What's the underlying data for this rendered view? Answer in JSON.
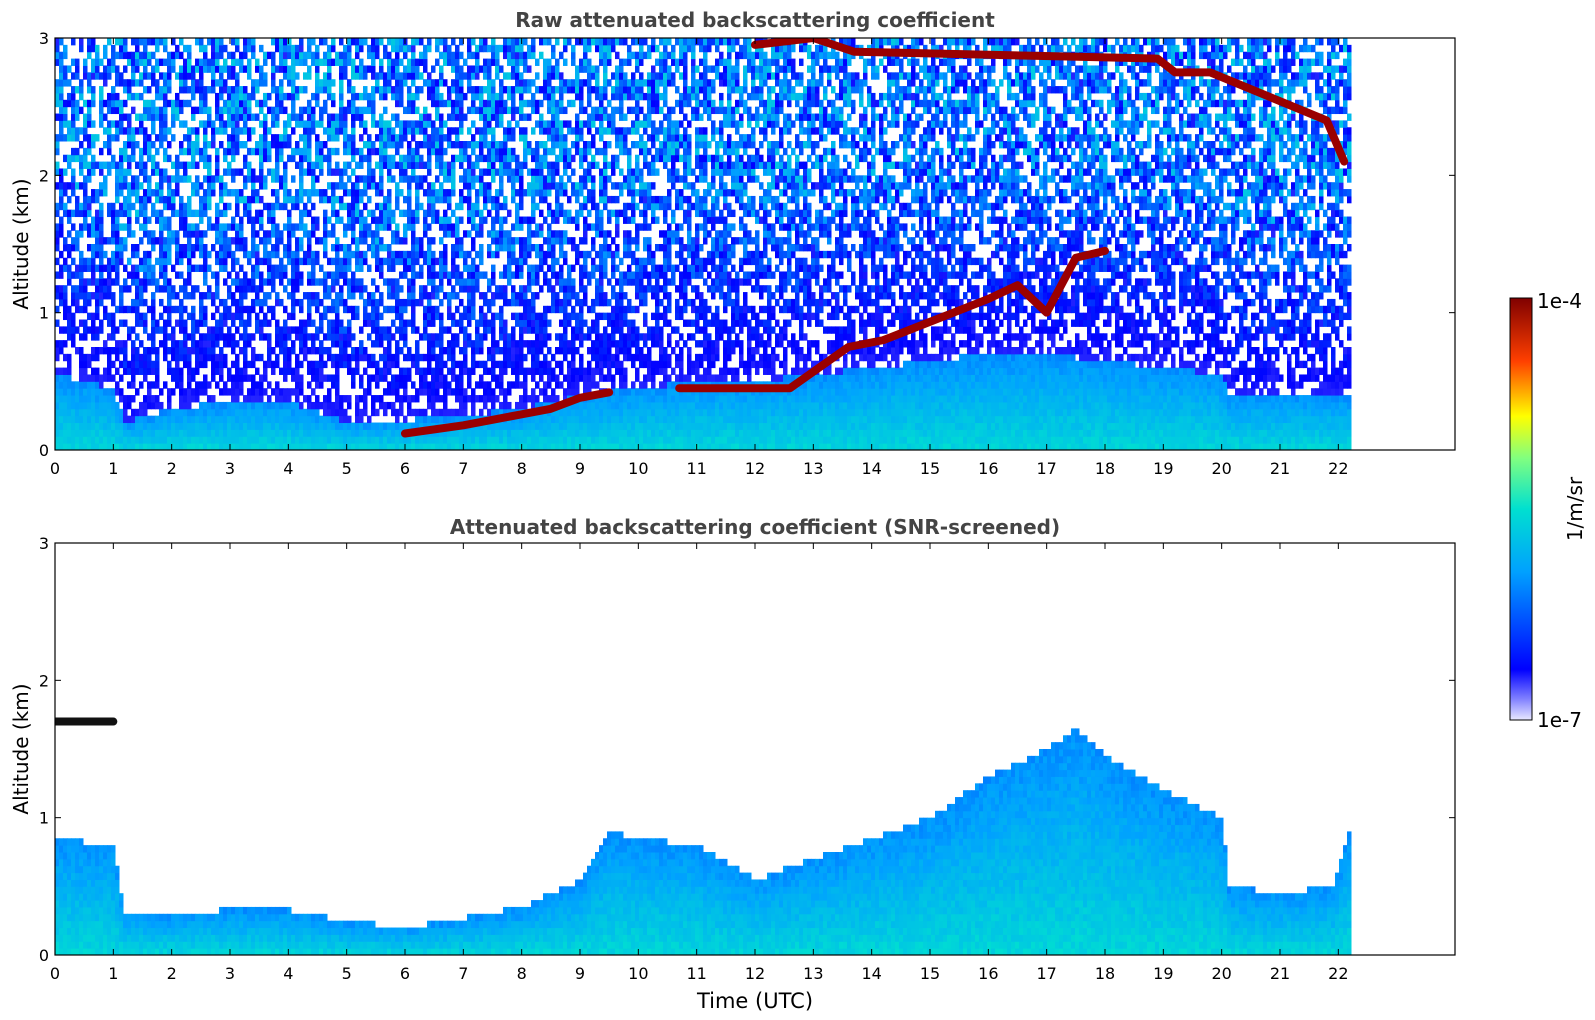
{
  "chart_data": [
    {
      "type": "heatmap",
      "title": "Raw attenuated backscattering coefficient",
      "xlabel": "",
      "ylabel": "Altitude (km)",
      "x_ticks": [
        0,
        1,
        2,
        3,
        4,
        5,
        6,
        7,
        8,
        9,
        10,
        11,
        12,
        13,
        14,
        15,
        16,
        17,
        18,
        19,
        20,
        21,
        22
      ],
      "y_ticks": [
        0,
        1,
        2,
        3
      ],
      "xlim": [
        0,
        24
      ],
      "ylim": [
        0,
        3
      ],
      "data_x_extent": [
        0,
        22.2
      ],
      "colorscale": "jet",
      "layers": [
        {
          "feature": "boundary layer",
          "x": [
            0,
            1,
            1.2,
            2,
            3,
            4,
            5,
            6,
            7,
            8,
            9,
            10,
            11,
            12,
            13,
            14,
            15,
            16,
            17,
            18,
            19,
            20,
            20.1,
            21,
            22.2
          ],
          "top_km": [
            0.55,
            0.45,
            0.2,
            0.3,
            0.35,
            0.35,
            0.2,
            0.22,
            0.25,
            0.3,
            0.4,
            0.45,
            0.5,
            0.5,
            0.55,
            0.6,
            0.65,
            0.7,
            0.7,
            0.65,
            0.6,
            0.55,
            0.4,
            0.4,
            0.4
          ]
        },
        {
          "feature": "aerosol layer top",
          "x": [
            6,
            7,
            8,
            8.5,
            9,
            9.5
          ],
          "top_km": [
            0.12,
            0.18,
            0.26,
            0.3,
            0.38,
            0.42
          ]
        },
        {
          "feature": "elevated layers",
          "x": [
            10.7,
            11.2,
            11.9,
            12.6,
            13.6,
            14.2,
            14.8,
            15.4,
            16.0,
            16.5,
            17.0,
            17.5,
            18.0
          ],
          "top_km": [
            0.45,
            0.45,
            0.45,
            0.45,
            0.75,
            0.8,
            0.9,
            1.0,
            1.1,
            1.2,
            1.0,
            1.4,
            1.45
          ]
        },
        {
          "feature": "upper clouds",
          "x": [
            12.0,
            13.0,
            13.7,
            18.9,
            19.2,
            19.8,
            21.8,
            22.1
          ],
          "top_km": [
            2.95,
            3.0,
            2.9,
            2.85,
            2.75,
            2.75,
            2.4,
            2.1
          ]
        }
      ]
    },
    {
      "type": "heatmap",
      "title": "Attenuated backscattering coefficient (SNR-screened)",
      "xlabel": "Time (UTC)",
      "ylabel": "Altitude (km)",
      "x_ticks": [
        0,
        1,
        2,
        3,
        4,
        5,
        6,
        7,
        8,
        9,
        10,
        11,
        12,
        13,
        14,
        15,
        16,
        17,
        18,
        19,
        20,
        21,
        22
      ],
      "y_ticks": [
        0,
        1,
        2,
        3
      ],
      "xlim": [
        0,
        24
      ],
      "ylim": [
        0,
        3
      ],
      "data_x_extent": [
        0,
        22.2
      ],
      "colorscale": "jet",
      "layers": [
        {
          "feature": "screened signal top",
          "x": [
            0,
            1,
            1.2,
            2,
            3,
            4,
            5,
            6,
            7,
            8,
            9,
            9.5,
            10,
            11,
            12,
            13,
            14,
            15,
            16,
            17,
            17.5,
            18,
            19,
            20,
            20.1,
            21,
            21.9,
            22.2
          ],
          "top_km": [
            0.85,
            0.8,
            0.3,
            0.3,
            0.33,
            0.33,
            0.25,
            0.2,
            0.27,
            0.35,
            0.55,
            0.9,
            0.85,
            0.8,
            0.55,
            0.7,
            0.85,
            1.0,
            1.3,
            1.5,
            1.65,
            1.45,
            1.2,
            1.0,
            0.5,
            0.45,
            0.5,
            0.95
          ]
        },
        {
          "feature": "elevated layer 0-1",
          "x": [
            0,
            1
          ],
          "top_km": [
            1.7,
            1.7
          ]
        }
      ]
    }
  ],
  "colorbar": {
    "label": "1/m/sr",
    "max_label": "1e-4",
    "min_label": "1e-7",
    "min_value": 1e-07,
    "max_value": 0.0001,
    "scale": "log"
  }
}
